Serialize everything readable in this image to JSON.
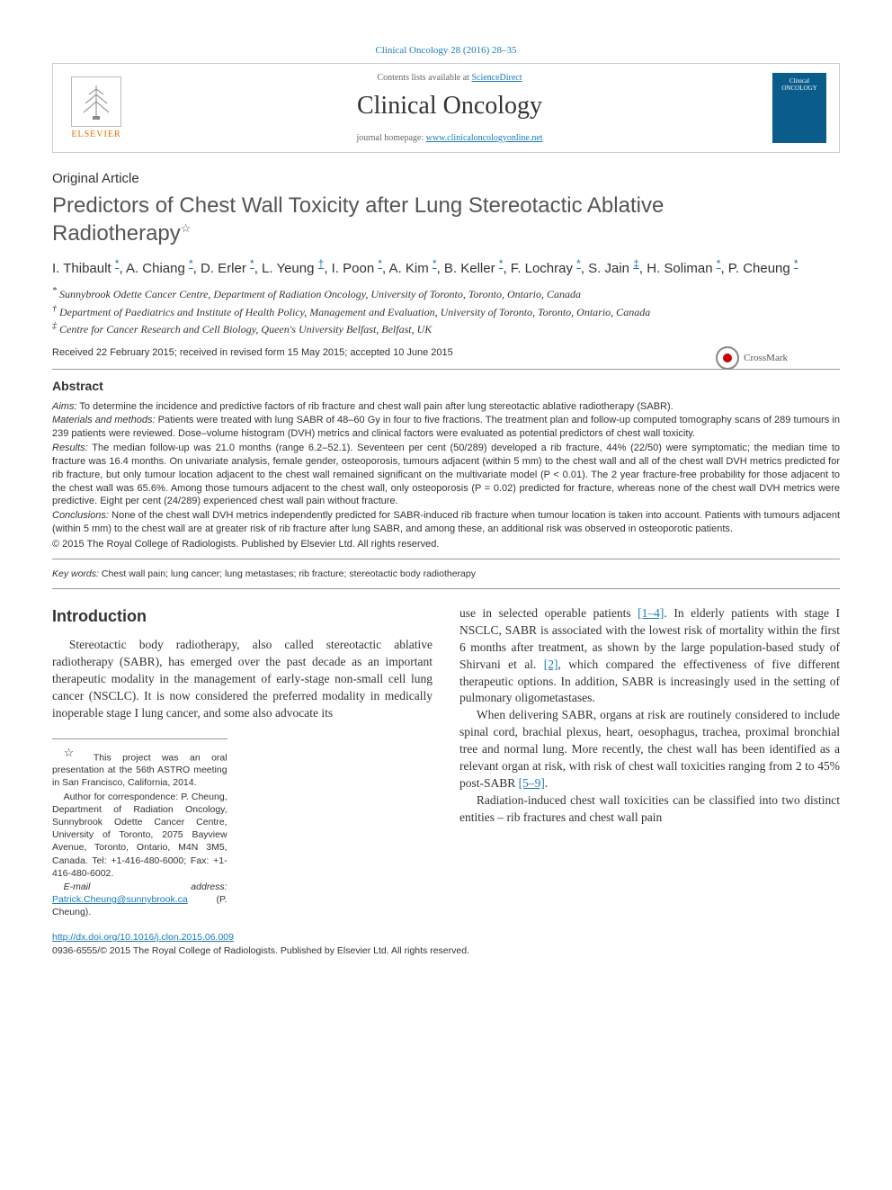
{
  "citation": "Clinical Oncology 28 (2016) 28–35",
  "masthead": {
    "contents_prefix": "Contents lists available at ",
    "contents_link": "ScienceDirect",
    "journal_name": "Clinical Oncology",
    "homepage_prefix": "journal homepage: ",
    "homepage_url": "www.clinicaloncologyonline.net",
    "publisher": "ELSEVIER",
    "cover_label": "Clinical ONCOLOGY"
  },
  "article_type": "Original Article",
  "title": "Predictors of Chest Wall Toxicity after Lung Stereotactic Ablative Radiotherapy",
  "title_note_symbol": "☆",
  "crossmark_label": "CrossMark",
  "authors": [
    {
      "name": "I. Thibault",
      "aff": "*"
    },
    {
      "name": "A. Chiang",
      "aff": "*"
    },
    {
      "name": "D. Erler",
      "aff": "*"
    },
    {
      "name": "L. Yeung",
      "aff": "†"
    },
    {
      "name": "I. Poon",
      "aff": "*"
    },
    {
      "name": "A. Kim",
      "aff": "*"
    },
    {
      "name": "B. Keller",
      "aff": "*"
    },
    {
      "name": "F. Lochray",
      "aff": "*"
    },
    {
      "name": "S. Jain",
      "aff": "‡"
    },
    {
      "name": "H. Soliman",
      "aff": "*"
    },
    {
      "name": "P. Cheung",
      "aff": "*"
    }
  ],
  "affiliations": [
    {
      "symbol": "*",
      "text": "Sunnybrook Odette Cancer Centre, Department of Radiation Oncology, University of Toronto, Toronto, Ontario, Canada"
    },
    {
      "symbol": "†",
      "text": "Department of Paediatrics and Institute of Health Policy, Management and Evaluation, University of Toronto, Toronto, Ontario, Canada"
    },
    {
      "symbol": "‡",
      "text": "Centre for Cancer Research and Cell Biology, Queen's University Belfast, Belfast, UK"
    }
  ],
  "dates": "Received 22 February 2015; received in revised form 15 May 2015; accepted 10 June 2015",
  "abstract": {
    "heading": "Abstract",
    "aims_label": "Aims:",
    "aims": " To determine the incidence and predictive factors of rib fracture and chest wall pain after lung stereotactic ablative radiotherapy (SABR).",
    "methods_label": "Materials and methods:",
    "methods": " Patients were treated with lung SABR of 48–60 Gy in four to five fractions. The treatment plan and follow-up computed tomography scans of 289 tumours in 239 patients were reviewed. Dose–volume histogram (DVH) metrics and clinical factors were evaluated as potential predictors of chest wall toxicity.",
    "results_label": "Results:",
    "results": " The median follow-up was 21.0 months (range 6.2–52.1). Seventeen per cent (50/289) developed a rib fracture, 44% (22/50) were symptomatic; the median time to fracture was 16.4 months. On univariate analysis, female gender, osteoporosis, tumours adjacent (within 5 mm) to the chest wall and all of the chest wall DVH metrics predicted for rib fracture, but only tumour location adjacent to the chest wall remained significant on the multivariate model (P < 0.01). The 2 year fracture-free probability for those adjacent to the chest wall was 65.6%. Among those tumours adjacent to the chest wall, only osteoporosis (P = 0.02) predicted for fracture, whereas none of the chest wall DVH metrics were predictive. Eight per cent (24/289) experienced chest wall pain without fracture.",
    "conclusions_label": "Conclusions:",
    "conclusions": " None of the chest wall DVH metrics independently predicted for SABR-induced rib fracture when tumour location is taken into account. Patients with tumours adjacent (within 5 mm) to the chest wall are at greater risk of rib fracture after lung SABR, and among these, an additional risk was observed in osteoporotic patients.",
    "copyright": "© 2015 The Royal College of Radiologists. Published by Elsevier Ltd. All rights reserved."
  },
  "keywords": {
    "label": "Key words:",
    "text": " Chest wall pain; lung cancer; lung metastases; rib fracture; stereotactic body radiotherapy"
  },
  "intro": {
    "heading": "Introduction",
    "p1": "Stereotactic body radiotherapy, also called stereotactic ablative radiotherapy (SABR), has emerged over the past decade as an important therapeutic modality in the management of early-stage non-small cell lung cancer (NSCLC). It is now considered the preferred modality in medically inoperable stage I lung cancer, and some also advocate its",
    "p1b_a": "use in selected operable patients ",
    "p1b_ref1": "[1–4]",
    "p1b_b": ". In elderly patients with stage I NSCLC, SABR is associated with the lowest risk of mortality within the first 6 months after treatment, as shown by the large population-based study of Shirvani et al. ",
    "p1b_ref2": "[2]",
    "p1b_c": ", which compared the effectiveness of five different therapeutic options. In addition, SABR is increasingly used in the setting of pulmonary oligometastases.",
    "p2_a": "When delivering SABR, organs at risk are routinely considered to include spinal cord, brachial plexus, heart, oesophagus, trachea, proximal bronchial tree and normal lung. More recently, the chest wall has been identified as a relevant organ at risk, with risk of chest wall toxicities ranging from 2 to 45% post-SABR ",
    "p2_ref": "[5–9]",
    "p2_b": ".",
    "p3": "Radiation-induced chest wall toxicities can be classified into two distinct entities – rib fractures and chest wall pain"
  },
  "footnotes": {
    "presentation": "This project was an oral presentation at the 56th ASTRO meeting in San Francisco, California, 2014.",
    "correspondence": "Author for correspondence: P. Cheung, Department of Radiation Oncology, Sunnybrook Odette Cancer Centre, University of Toronto, 2075 Bayview Avenue, Toronto, Ontario, M4N 3M5, Canada. Tel: +1-416-480-6000; Fax: +1-416-480-6002.",
    "email_label": "E-mail address:",
    "email": "Patrick.Cheung@sunnybrook.ca",
    "email_who": "(P. Cheung)."
  },
  "footer": {
    "doi": "http://dx.doi.org/10.1016/j.clon.2015.06.009",
    "issn_line": "0936-6555/© 2015 The Royal College of Radiologists. Published by Elsevier Ltd. All rights reserved."
  },
  "colors": {
    "link": "#1a7bb9",
    "publisher_orange": "#e57200",
    "cover_blue": "#0a5c8a",
    "text": "#333333",
    "rule": "#999999"
  },
  "typography": {
    "title_fontsize": 24,
    "journal_fontsize": 28,
    "body_fontsize": 13.5,
    "abstract_fontsize": 11,
    "section_heading_fontsize": 18
  }
}
